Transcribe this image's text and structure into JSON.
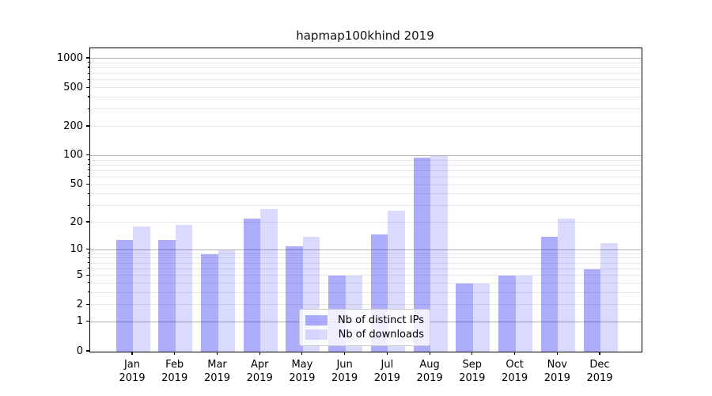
{
  "title": "hapmap100khind 2019",
  "chart_data": {
    "type": "bar",
    "title": "hapmap100khind 2019",
    "x_categories": [
      "Jan",
      "Feb",
      "Mar",
      "Apr",
      "May",
      "Jun",
      "Jul",
      "Aug",
      "Sep",
      "Oct",
      "Nov",
      "Dec"
    ],
    "x_year": "2019",
    "series": [
      {
        "name": "Nb of distinct IPs",
        "color": "rgba(8,8,245,0.335)",
        "values": [
          13,
          13,
          9,
          22,
          11,
          5,
          15,
          96,
          4,
          5,
          14,
          6
        ]
      },
      {
        "name": "Nb of downloads",
        "color": "rgba(8,8,245,0.15)",
        "values": [
          18,
          19,
          10,
          28,
          14,
          5,
          27,
          100,
          4,
          5,
          22,
          12
        ]
      }
    ],
    "y_scale": "log10(1+value)",
    "y_ticks": [
      0,
      1,
      2,
      5,
      10,
      20,
      50,
      100,
      200,
      500,
      1000
    ],
    "y_minor_ticks": [
      3,
      4,
      6,
      7,
      8,
      9,
      30,
      40,
      60,
      70,
      80,
      90,
      300,
      400,
      600,
      700,
      800,
      900
    ],
    "y_major_grid": [
      1,
      10,
      100,
      1000
    ],
    "ylim": [
      0,
      1260
    ],
    "grid": true,
    "legend_position": "lower center",
    "legend_entries": [
      "Nb of distinct IPs",
      "Nb of downloads"
    ]
  },
  "colors": {
    "background": "#ffffff",
    "major_grid": "#b0b0b0",
    "minor_grid": "#e9e9e9",
    "spine": "#000000",
    "text": "#000000",
    "legend_border": "#cccccc",
    "legend_background": "rgba(255,255,255,0.8)"
  }
}
